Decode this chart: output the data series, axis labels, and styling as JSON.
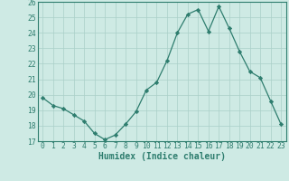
{
  "x": [
    0,
    1,
    2,
    3,
    4,
    5,
    6,
    7,
    8,
    9,
    10,
    11,
    12,
    13,
    14,
    15,
    16,
    17,
    18,
    19,
    20,
    21,
    22,
    23
  ],
  "y": [
    19.8,
    19.3,
    19.1,
    18.7,
    18.3,
    17.5,
    17.1,
    17.4,
    18.1,
    18.9,
    20.3,
    20.8,
    22.2,
    24.0,
    25.2,
    25.5,
    24.1,
    25.7,
    24.3,
    22.8,
    21.5,
    21.1,
    19.6,
    18.1
  ],
  "line_color": "#2e7d6e",
  "marker": "D",
  "marker_size": 2.2,
  "bg_color": "#ceeae4",
  "grid_color": "#aacfc8",
  "xlabel": "Humidex (Indice chaleur)",
  "ylim": [
    17,
    26
  ],
  "yticks": [
    17,
    18,
    19,
    20,
    21,
    22,
    23,
    24,
    25,
    26
  ],
  "xticks": [
    0,
    1,
    2,
    3,
    4,
    5,
    6,
    7,
    8,
    9,
    10,
    11,
    12,
    13,
    14,
    15,
    16,
    17,
    18,
    19,
    20,
    21,
    22,
    23
  ],
  "xlabel_fontsize": 7.0,
  "tick_fontsize": 5.8
}
